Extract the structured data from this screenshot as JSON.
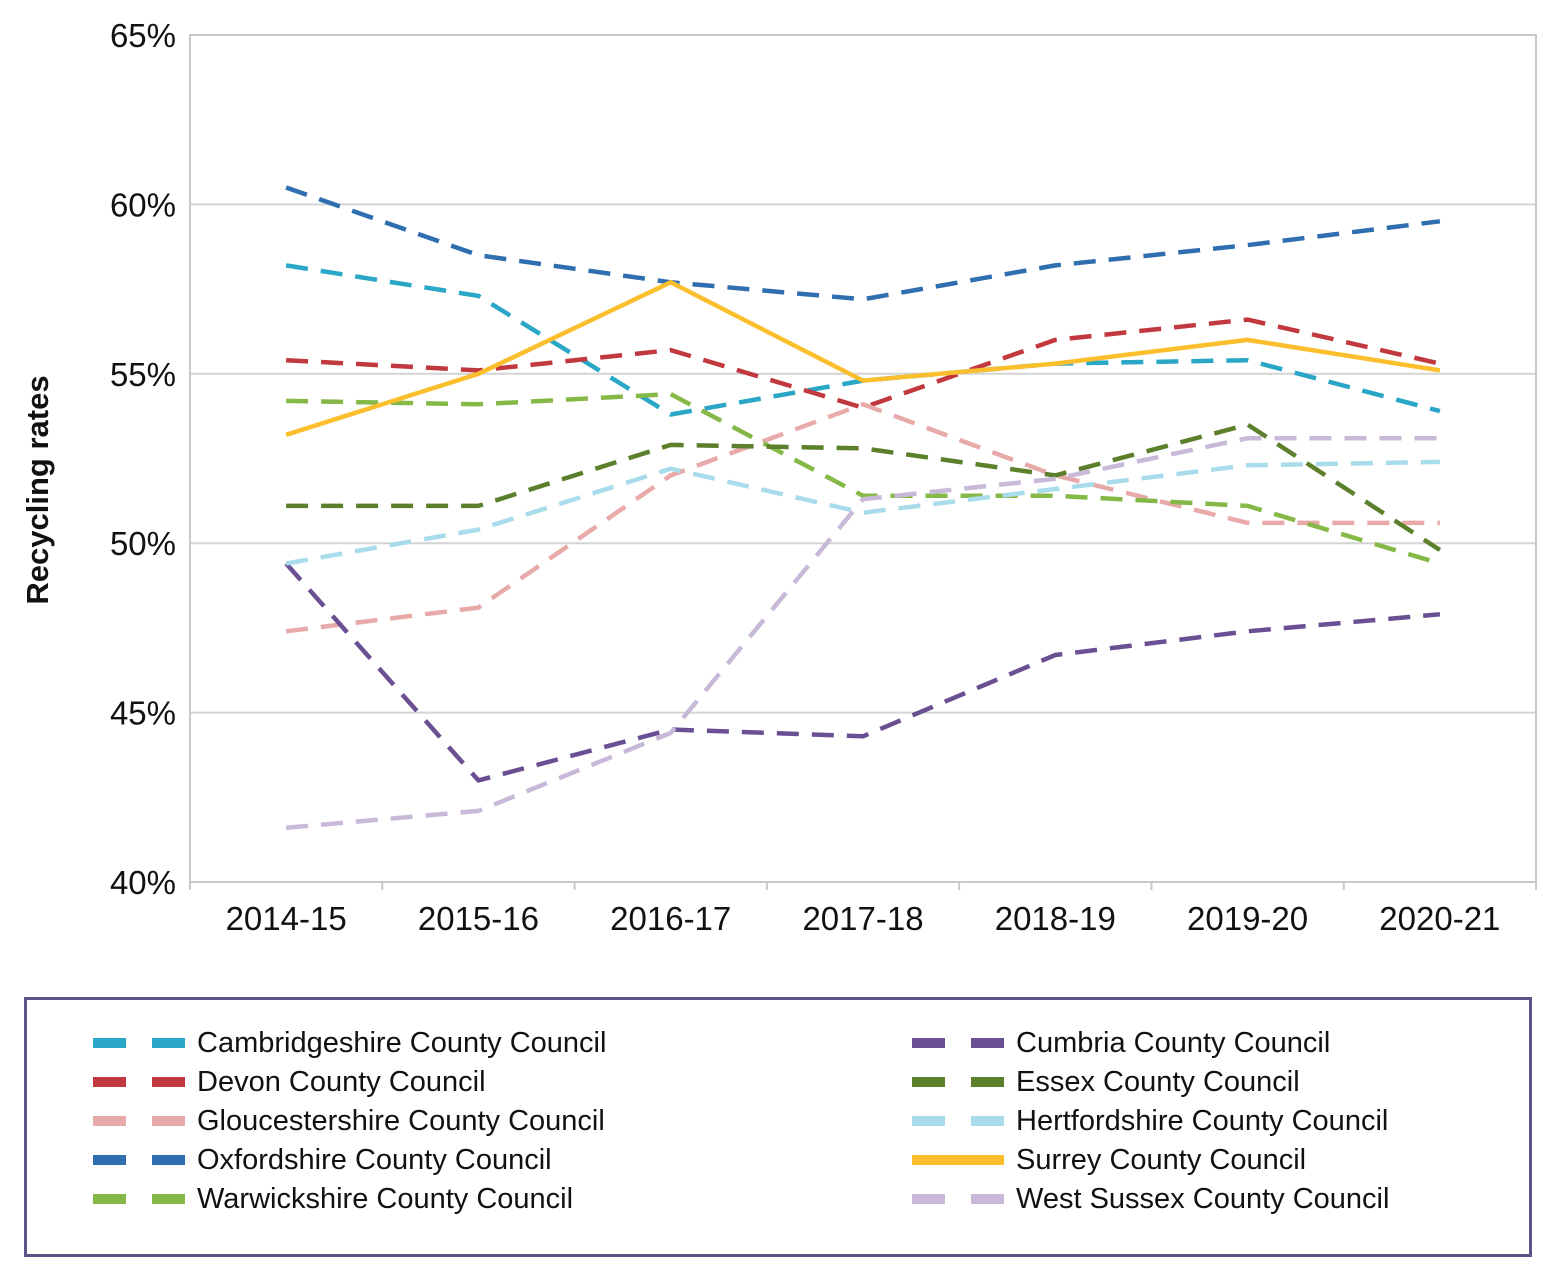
{
  "chart_data": {
    "type": "line",
    "title": "",
    "xlabel": "",
    "ylabel": "Recycling rates",
    "ylim": [
      40,
      65
    ],
    "ytick_values": [
      40,
      45,
      50,
      55,
      60,
      65
    ],
    "ytick_labels": [
      "40%",
      "45%",
      "50%",
      "55%",
      "60%",
      "65%"
    ],
    "categories": [
      "2014-15",
      "2015-16",
      "2016-17",
      "2017-18",
      "2018-19",
      "2019-20",
      "2020-21"
    ],
    "grid": true,
    "legend_position": "bottom",
    "series": [
      {
        "name": "Cambridgeshire County Council",
        "color": "#2aa7c6",
        "style": "dashed",
        "values": [
          58.2,
          57.3,
          53.8,
          54.8,
          55.3,
          55.4,
          53.9
        ]
      },
      {
        "name": "Devon County Council",
        "color": "#c1393f",
        "style": "dashed",
        "values": [
          55.4,
          55.1,
          55.7,
          54.0,
          56.0,
          56.6,
          55.3
        ]
      },
      {
        "name": "Gloucestershire County Council",
        "color": "#e8a9a9",
        "style": "dashed",
        "values": [
          47.4,
          48.1,
          52.0,
          54.1,
          52.0,
          50.6,
          50.6
        ]
      },
      {
        "name": "Oxfordshire County Council",
        "color": "#2f6fb0",
        "style": "dashed",
        "values": [
          60.5,
          58.5,
          57.7,
          57.2,
          58.2,
          58.8,
          59.5
        ]
      },
      {
        "name": "Warwickshire County Council",
        "color": "#86b847",
        "style": "dashed",
        "values": [
          54.2,
          54.1,
          54.4,
          51.4,
          51.4,
          51.1,
          49.4
        ]
      },
      {
        "name": "Cumbria County Council",
        "color": "#6a4f93",
        "style": "dashed",
        "values": [
          49.4,
          43.0,
          44.5,
          44.3,
          46.7,
          47.4,
          47.9
        ]
      },
      {
        "name": "Essex County Council",
        "color": "#5c7f2b",
        "style": "dashed",
        "values": [
          51.1,
          51.1,
          52.9,
          52.8,
          52.0,
          53.5,
          49.8
        ]
      },
      {
        "name": "Hertfordshire County Council",
        "color": "#a9dcea",
        "style": "dashed",
        "values": [
          49.4,
          50.4,
          52.2,
          50.9,
          51.6,
          52.3,
          52.4
        ]
      },
      {
        "name": "Surrey County Council",
        "color": "#fbbf2d",
        "style": "solid",
        "values": [
          53.2,
          55.0,
          57.7,
          54.8,
          55.3,
          56.0,
          55.1
        ]
      },
      {
        "name": "West Sussex County Council",
        "color": "#c9b9d8",
        "style": "dashed",
        "values": [
          41.6,
          42.1,
          44.4,
          51.3,
          51.9,
          53.1,
          53.1
        ]
      }
    ]
  }
}
